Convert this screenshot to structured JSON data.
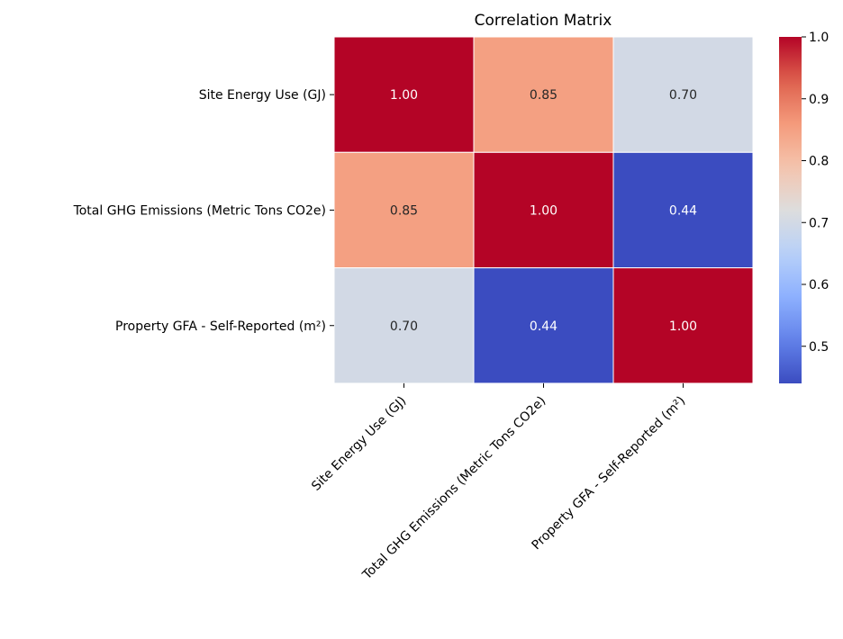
{
  "chart_data": {
    "type": "heatmap",
    "title": "Correlation Matrix",
    "x_labels": [
      "Site Energy Use (GJ)",
      "Total GHG Emissions (Metric Tons CO2e)",
      "Property GFA - Self-Reported (m²)"
    ],
    "y_labels": [
      "Site Energy Use (GJ)",
      "Total GHG Emissions (Metric Tons CO2e)",
      "Property GFA - Self-Reported (m²)"
    ],
    "values": [
      [
        1.0,
        0.85,
        0.7
      ],
      [
        0.85,
        1.0,
        0.44
      ],
      [
        0.7,
        0.44,
        1.0
      ]
    ],
    "cell_labels": [
      [
        "1.00",
        "0.85",
        "0.70"
      ],
      [
        "0.85",
        "1.00",
        "0.44"
      ],
      [
        "0.70",
        "0.44",
        "1.00"
      ]
    ],
    "colormap": "coolwarm",
    "vmin": 0.44,
    "vmax": 1.0,
    "colorbar_ticks": [
      0.5,
      0.6,
      0.7,
      0.8,
      0.9,
      1.0
    ],
    "colorbar_tick_labels": [
      "0.5",
      "0.6",
      "0.7",
      "0.8",
      "0.9",
      "1.0"
    ],
    "cell_border_color": "#ffffff"
  }
}
